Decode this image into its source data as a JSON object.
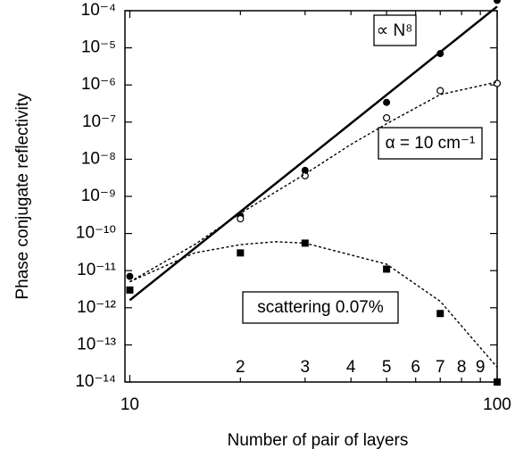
{
  "chart_data": {
    "type": "scatter",
    "x_label": "Number of pair of layers",
    "y_label": "Phase conjugate reflectivity",
    "annotations": [
      "∝ N⁸",
      "α = 10 cm⁻¹",
      "scattering 0.07%"
    ],
    "log_x": true,
    "log_y": true,
    "xlim": [
      9.7,
      100
    ],
    "ylim": [
      1e-14,
      0.0001
    ],
    "xticks": [
      10,
      {
        "value": 20,
        "label": "2"
      },
      {
        "value": 30,
        "label": "3"
      },
      {
        "value": 40,
        "label": "4"
      },
      {
        "value": 50,
        "label": "5"
      },
      {
        "value": 60,
        "label": "6"
      },
      {
        "value": 70,
        "label": "7"
      },
      {
        "value": 80,
        "label": "8"
      },
      {
        "value": 90,
        "label": "9"
      },
      100
    ],
    "yticks": [
      {
        "value": 1e-14,
        "label": "10⁻¹⁴"
      },
      {
        "value": 1e-13,
        "label": "10⁻¹³"
      },
      {
        "value": 1e-12,
        "label": "10⁻¹²"
      },
      {
        "value": 1e-11,
        "label": "10⁻¹¹"
      },
      {
        "value": 1e-10,
        "label": "10⁻¹⁰"
      },
      {
        "value": 1e-09,
        "label": "10⁻⁹"
      },
      {
        "value": 1e-08,
        "label": "10⁻⁸"
      },
      {
        "value": 1e-07,
        "label": "10⁻⁷"
      },
      {
        "value": 1e-06,
        "label": "10⁻⁶"
      },
      {
        "value": 1e-05,
        "label": "10⁻⁵"
      },
      {
        "value": 0.0001,
        "label": "10⁻⁴"
      }
    ],
    "series": [
      {
        "marker": "filled-circle",
        "color": "#000000",
        "x": [
          10,
          20,
          30,
          50,
          70,
          100
        ],
        "values": [
          7e-12,
          3e-10,
          5e-09,
          3.4e-07,
          7e-06,
          0.00019
        ]
      },
      {
        "marker": "open-circle",
        "color": "#000000",
        "x": [
          20,
          30,
          50,
          70,
          100
        ],
        "values": [
          2.5e-10,
          3.6e-09,
          1.3e-07,
          7e-07,
          1.1e-06
        ]
      },
      {
        "marker": "filled-square",
        "color": "#000000",
        "x": [
          10,
          20,
          30,
          50,
          70,
          100
        ],
        "values": [
          3e-12,
          3e-11,
          5.5e-11,
          1.1e-11,
          7e-13,
          1e-14
        ]
      },
      {
        "line": "solid",
        "color": "#000000",
        "x": [
          10,
          100
        ],
        "values": [
          1.6e-12,
          0.00013
        ]
      },
      {
        "line": "dashed",
        "color": "#000000",
        "x": [
          10,
          15,
          20,
          30,
          40,
          50,
          70,
          100
        ],
        "values": [
          5e-12,
          5e-11,
          3.5e-10,
          4e-09,
          2.5e-08,
          9e-08,
          5.5e-07,
          1.2e-06
        ]
      },
      {
        "line": "dashed",
        "color": "#000000",
        "x": [
          10,
          15,
          20,
          25,
          30,
          50,
          70,
          100
        ],
        "values": [
          5e-12,
          3e-11,
          5e-11,
          6e-11,
          5.5e-11,
          1.5e-11,
          1.5e-12,
          2.5e-14
        ]
      }
    ]
  }
}
